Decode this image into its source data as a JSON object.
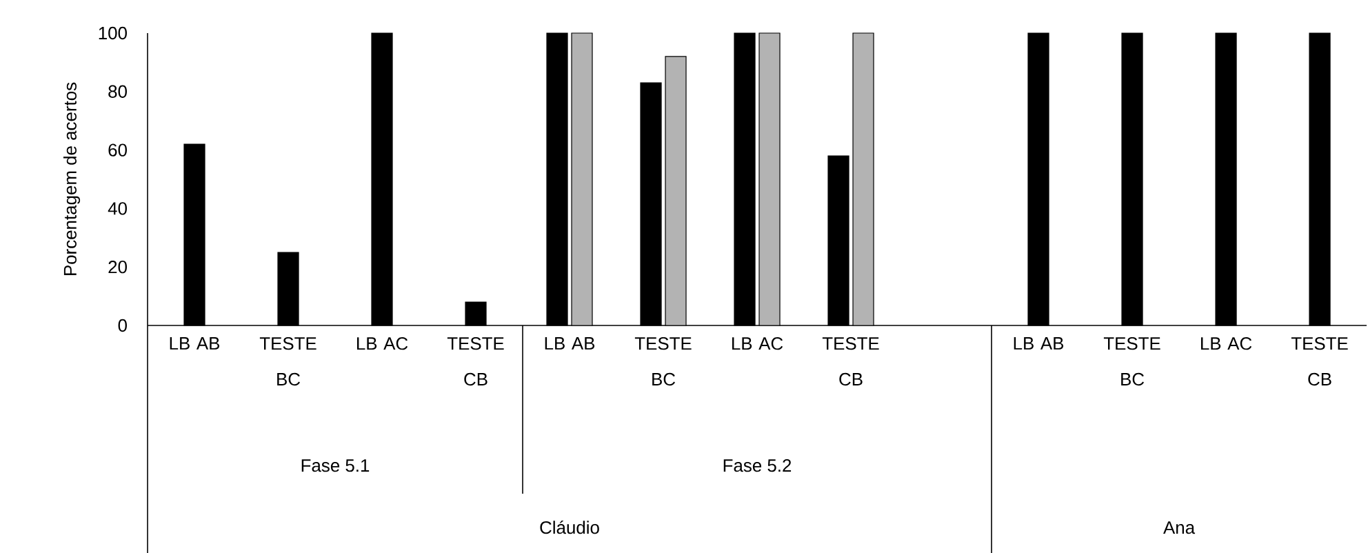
{
  "chart_data": {
    "type": "bar",
    "ylabel": "Porcentagem de acertos",
    "categories": [
      "LB AB",
      "TESTE BC",
      "LB AC",
      "TESTE CB",
      "LB AB",
      "TESTE BC",
      "LB AC",
      "TESTE CB",
      null,
      "LB AB",
      "TESTE BC",
      "LB AC",
      "TESTE CB"
    ],
    "series": [
      {
        "color": "#000000",
        "values": [
          62,
          25,
          100,
          8,
          100,
          83,
          100,
          58,
          null,
          100,
          100,
          100,
          100
        ]
      },
      {
        "color": "#b3b3b3",
        "values": [
          null,
          null,
          null,
          null,
          100,
          92,
          100,
          100,
          null,
          null,
          null,
          null,
          null
        ]
      }
    ],
    "ylim": [
      0,
      100
    ],
    "yticks": [
      0,
      20,
      40,
      60,
      80,
      100
    ],
    "annotations": [
      "Fase 5.1",
      "Fase 5.2",
      "Cláudio",
      "Ana"
    ]
  }
}
